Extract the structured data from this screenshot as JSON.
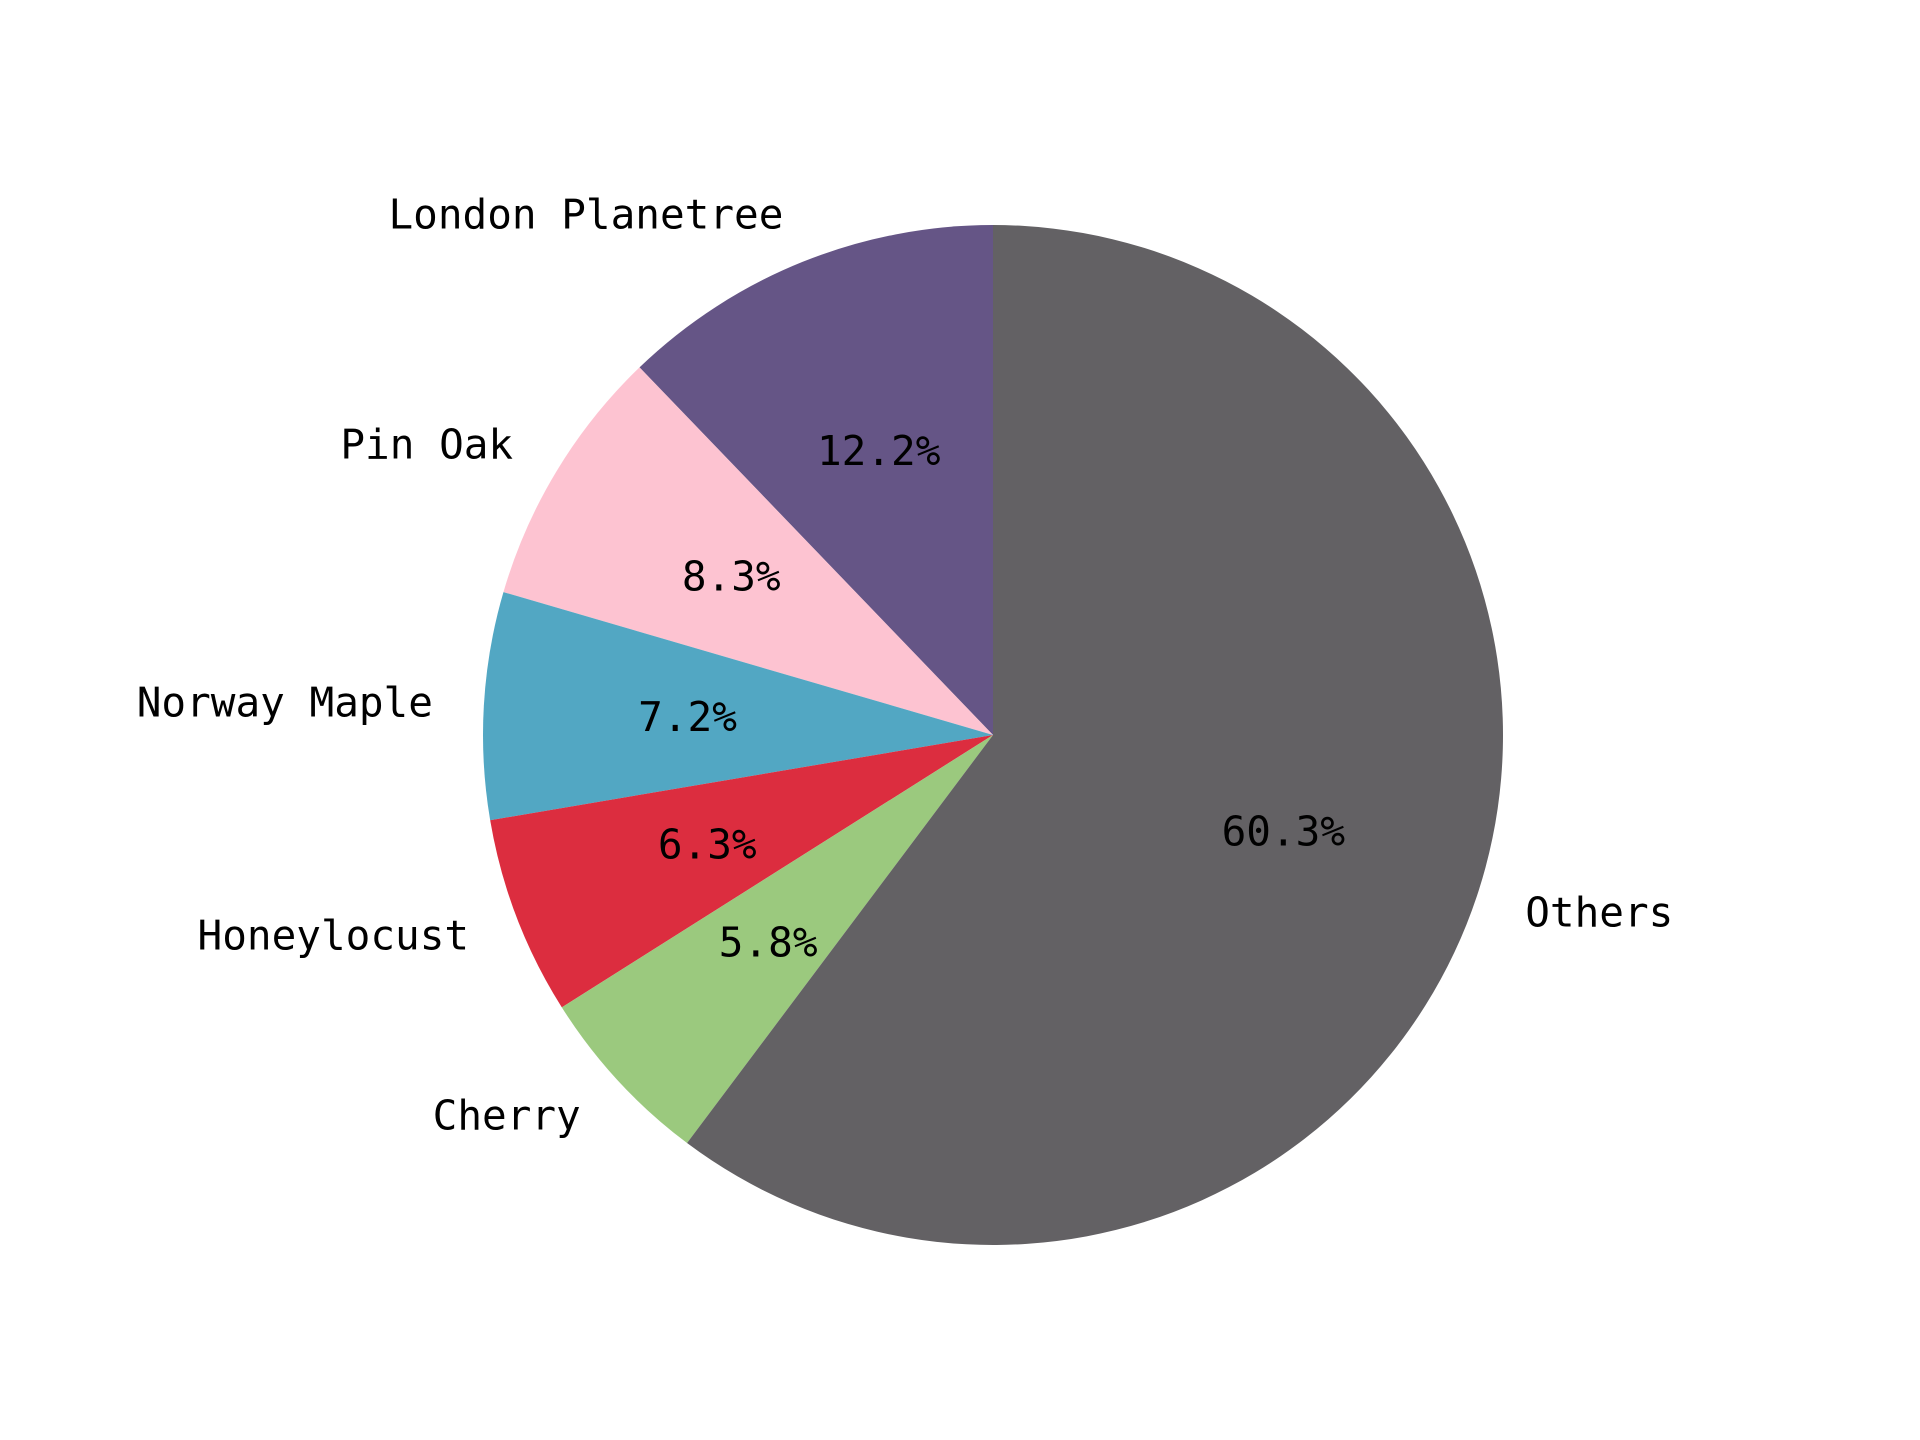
{
  "chart_data": {
    "type": "pie",
    "start_angle_deg": 90,
    "direction": "counterclockwise",
    "slices": [
      {
        "label": "London Planetree",
        "value": 12.2,
        "pct_text": "12.2%",
        "color": "#655586"
      },
      {
        "label": "Pin Oak",
        "value": 8.3,
        "pct_text": "8.3%",
        "color": "#fdc3d1"
      },
      {
        "label": "Norway Maple",
        "value": 7.2,
        "pct_text": "7.2%",
        "color": "#52a7c3"
      },
      {
        "label": "Honeylocust",
        "value": 6.3,
        "pct_text": "6.3%",
        "color": "#dc2d3f"
      },
      {
        "label": "Cherry",
        "value": 5.8,
        "pct_text": "5.8%",
        "color": "#9bc97e"
      },
      {
        "label": "Others",
        "value": 60.3,
        "pct_text": "60.3%",
        "color": "#636164"
      }
    ]
  }
}
